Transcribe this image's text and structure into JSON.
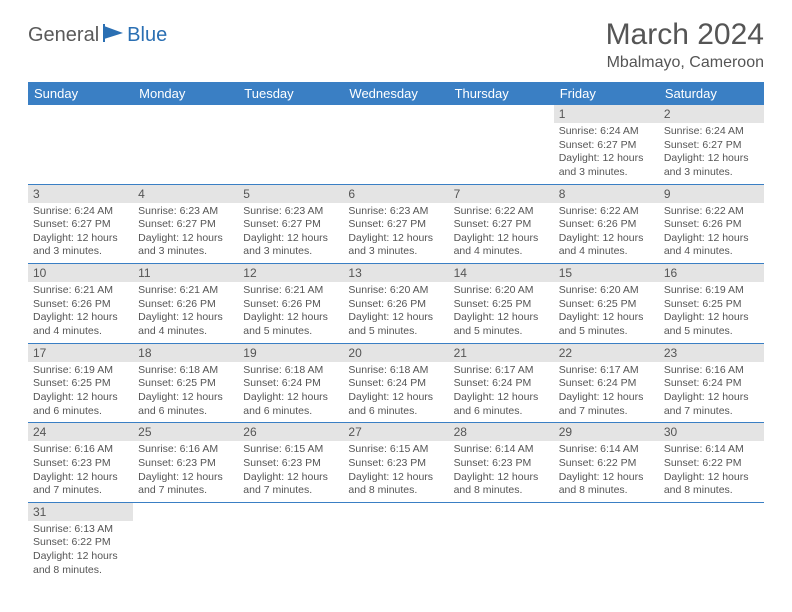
{
  "logo": {
    "general": "General",
    "blue": "Blue"
  },
  "title": "March 2024",
  "location": "Mbalmayo, Cameroon",
  "colors": {
    "header_bg": "#3a7fc4",
    "header_text": "#ffffff",
    "daynum_bg": "#e4e4e4",
    "text": "#555555",
    "row_border": "#3a7fc4",
    "logo_gray": "#5a5a5a",
    "logo_blue": "#2a6fb3"
  },
  "weekdays": [
    "Sunday",
    "Monday",
    "Tuesday",
    "Wednesday",
    "Thursday",
    "Friday",
    "Saturday"
  ],
  "weeks": [
    [
      null,
      null,
      null,
      null,
      null,
      {
        "n": "1",
        "sr": "6:24 AM",
        "ss": "6:27 PM",
        "dl": "12 hours and 3 minutes."
      },
      {
        "n": "2",
        "sr": "6:24 AM",
        "ss": "6:27 PM",
        "dl": "12 hours and 3 minutes."
      }
    ],
    [
      {
        "n": "3",
        "sr": "6:24 AM",
        "ss": "6:27 PM",
        "dl": "12 hours and 3 minutes."
      },
      {
        "n": "4",
        "sr": "6:23 AM",
        "ss": "6:27 PM",
        "dl": "12 hours and 3 minutes."
      },
      {
        "n": "5",
        "sr": "6:23 AM",
        "ss": "6:27 PM",
        "dl": "12 hours and 3 minutes."
      },
      {
        "n": "6",
        "sr": "6:23 AM",
        "ss": "6:27 PM",
        "dl": "12 hours and 3 minutes."
      },
      {
        "n": "7",
        "sr": "6:22 AM",
        "ss": "6:27 PM",
        "dl": "12 hours and 4 minutes."
      },
      {
        "n": "8",
        "sr": "6:22 AM",
        "ss": "6:26 PM",
        "dl": "12 hours and 4 minutes."
      },
      {
        "n": "9",
        "sr": "6:22 AM",
        "ss": "6:26 PM",
        "dl": "12 hours and 4 minutes."
      }
    ],
    [
      {
        "n": "10",
        "sr": "6:21 AM",
        "ss": "6:26 PM",
        "dl": "12 hours and 4 minutes."
      },
      {
        "n": "11",
        "sr": "6:21 AM",
        "ss": "6:26 PM",
        "dl": "12 hours and 4 minutes."
      },
      {
        "n": "12",
        "sr": "6:21 AM",
        "ss": "6:26 PM",
        "dl": "12 hours and 5 minutes."
      },
      {
        "n": "13",
        "sr": "6:20 AM",
        "ss": "6:26 PM",
        "dl": "12 hours and 5 minutes."
      },
      {
        "n": "14",
        "sr": "6:20 AM",
        "ss": "6:25 PM",
        "dl": "12 hours and 5 minutes."
      },
      {
        "n": "15",
        "sr": "6:20 AM",
        "ss": "6:25 PM",
        "dl": "12 hours and 5 minutes."
      },
      {
        "n": "16",
        "sr": "6:19 AM",
        "ss": "6:25 PM",
        "dl": "12 hours and 5 minutes."
      }
    ],
    [
      {
        "n": "17",
        "sr": "6:19 AM",
        "ss": "6:25 PM",
        "dl": "12 hours and 6 minutes."
      },
      {
        "n": "18",
        "sr": "6:18 AM",
        "ss": "6:25 PM",
        "dl": "12 hours and 6 minutes."
      },
      {
        "n": "19",
        "sr": "6:18 AM",
        "ss": "6:24 PM",
        "dl": "12 hours and 6 minutes."
      },
      {
        "n": "20",
        "sr": "6:18 AM",
        "ss": "6:24 PM",
        "dl": "12 hours and 6 minutes."
      },
      {
        "n": "21",
        "sr": "6:17 AM",
        "ss": "6:24 PM",
        "dl": "12 hours and 6 minutes."
      },
      {
        "n": "22",
        "sr": "6:17 AM",
        "ss": "6:24 PM",
        "dl": "12 hours and 7 minutes."
      },
      {
        "n": "23",
        "sr": "6:16 AM",
        "ss": "6:24 PM",
        "dl": "12 hours and 7 minutes."
      }
    ],
    [
      {
        "n": "24",
        "sr": "6:16 AM",
        "ss": "6:23 PM",
        "dl": "12 hours and 7 minutes."
      },
      {
        "n": "25",
        "sr": "6:16 AM",
        "ss": "6:23 PM",
        "dl": "12 hours and 7 minutes."
      },
      {
        "n": "26",
        "sr": "6:15 AM",
        "ss": "6:23 PM",
        "dl": "12 hours and 7 minutes."
      },
      {
        "n": "27",
        "sr": "6:15 AM",
        "ss": "6:23 PM",
        "dl": "12 hours and 8 minutes."
      },
      {
        "n": "28",
        "sr": "6:14 AM",
        "ss": "6:23 PM",
        "dl": "12 hours and 8 minutes."
      },
      {
        "n": "29",
        "sr": "6:14 AM",
        "ss": "6:22 PM",
        "dl": "12 hours and 8 minutes."
      },
      {
        "n": "30",
        "sr": "6:14 AM",
        "ss": "6:22 PM",
        "dl": "12 hours and 8 minutes."
      }
    ],
    [
      {
        "n": "31",
        "sr": "6:13 AM",
        "ss": "6:22 PM",
        "dl": "12 hours and 8 minutes."
      },
      null,
      null,
      null,
      null,
      null,
      null
    ]
  ],
  "labels": {
    "sunrise": "Sunrise:",
    "sunset": "Sunset:",
    "daylight": "Daylight:"
  }
}
